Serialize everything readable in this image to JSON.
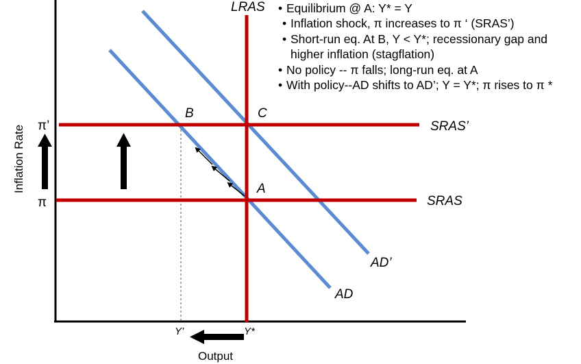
{
  "diagram": {
    "curve_labels": {
      "lras": "LRAS",
      "sras": "SRAS",
      "sras_prime": "SRAS’",
      "ad": "AD",
      "ad_prime": "AD’"
    },
    "point_labels": {
      "a": "A",
      "b": "B",
      "c": "C"
    },
    "axis": {
      "y_title": "Inflation Rate",
      "x_title": "Output",
      "pi": "π",
      "pi_prime": "π’",
      "y_star": "Y*",
      "y_prime": "Y’"
    },
    "notes": [
      "Equilibrium @ A: Y* = Y",
      "Inflation shock, π increases to π ‘ (SRAS’)",
      "Short-run eq. At B, Y < Y*; recessionary gap and",
      "higher inflation (stagflation)",
      "No policy -- π falls; long-run eq. at A",
      "With policy--AD shifts to AD’; Y = Y*; π  rises to π *"
    ],
    "colors": {
      "supply_curves": "#c00000",
      "demand_curves": "#5b8bd0",
      "axes_and_arrows": "#000000"
    }
  }
}
